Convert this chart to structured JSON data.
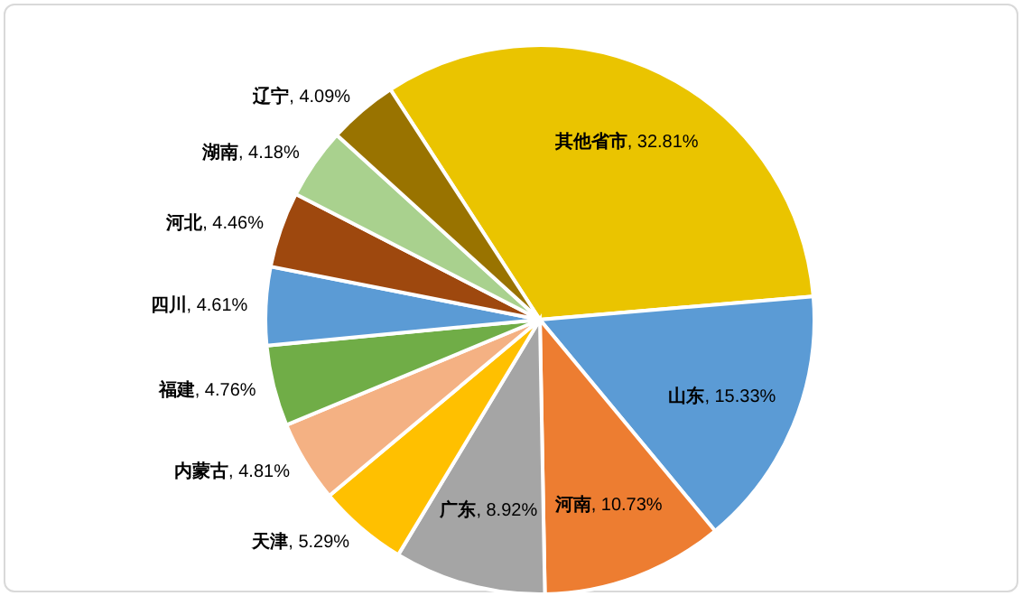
{
  "chart_data": {
    "type": "pie",
    "categories": [
      "其他省市",
      "山东",
      "河南",
      "广东",
      "天津",
      "内蒙古",
      "福建",
      "四川",
      "河北",
      "湖南",
      "辽宁"
    ],
    "values": [
      32.81,
      15.33,
      10.73,
      8.92,
      5.29,
      4.81,
      4.76,
      4.61,
      4.46,
      4.18,
      4.09
    ],
    "colors": [
      "#eac400",
      "#5b9bd5",
      "#ed7d31",
      "#a5a5a5",
      "#ffc000",
      "#f4b183",
      "#70ad47",
      "#5b9bd5",
      "#9e480e",
      "#a9d18e",
      "#997300"
    ],
    "value_labels": [
      ", 32.81%",
      ", 15.33%",
      ", 10.73%",
      ", 8.92%",
      ", 5.29%",
      ", 4.81%",
      ", 4.76%",
      ", 4.61%",
      ", 4.46%",
      ", 4.18%",
      ", 4.09%"
    ],
    "legend": false
  }
}
